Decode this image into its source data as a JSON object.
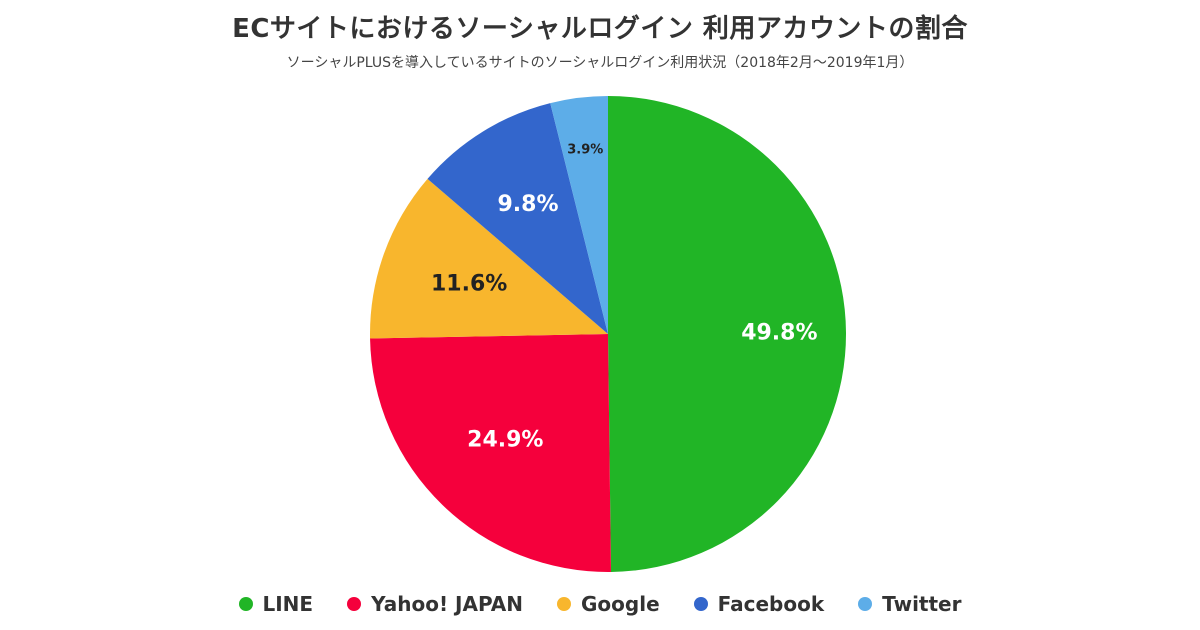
{
  "header": {
    "title": "ECサイトにおけるソーシャルログイン 利用アカウントの割合",
    "subtitle": "ソーシャルPLUSを導入しているサイトのソーシャルログイン利用状況（2018年2月〜2019年1月）"
  },
  "chart_data": {
    "type": "pie",
    "title": "ECサイトにおけるソーシャルログイン 利用アカウントの割合",
    "subtitle": "ソーシャルPLUSを導入しているサイトのソーシャルログイン利用状況（2018年2月〜2019年1月）",
    "categories": [
      "LINE",
      "Yahoo! JAPAN",
      "Google",
      "Facebook",
      "Twitter"
    ],
    "values": [
      49.8,
      24.9,
      11.6,
      9.8,
      3.9
    ],
    "labels": [
      "49.8%",
      "24.9%",
      "11.6%",
      "9.8%",
      "3.9%"
    ],
    "colors": [
      "#21b526",
      "#f5003c",
      "#f8b62d",
      "#3366cc",
      "#5dade8"
    ],
    "label_colors": [
      "#ffffff",
      "#ffffff",
      "#222222",
      "#ffffff",
      "#222222"
    ],
    "start_angle": "top",
    "direction": "clockwise",
    "legend_position": "bottom"
  },
  "legend": {
    "items": [
      {
        "label": "LINE",
        "color": "#21b526"
      },
      {
        "label": "Yahoo! JAPAN",
        "color": "#f5003c"
      },
      {
        "label": "Google",
        "color": "#f8b62d"
      },
      {
        "label": "Facebook",
        "color": "#3366cc"
      },
      {
        "label": "Twitter",
        "color": "#5dade8"
      }
    ]
  }
}
